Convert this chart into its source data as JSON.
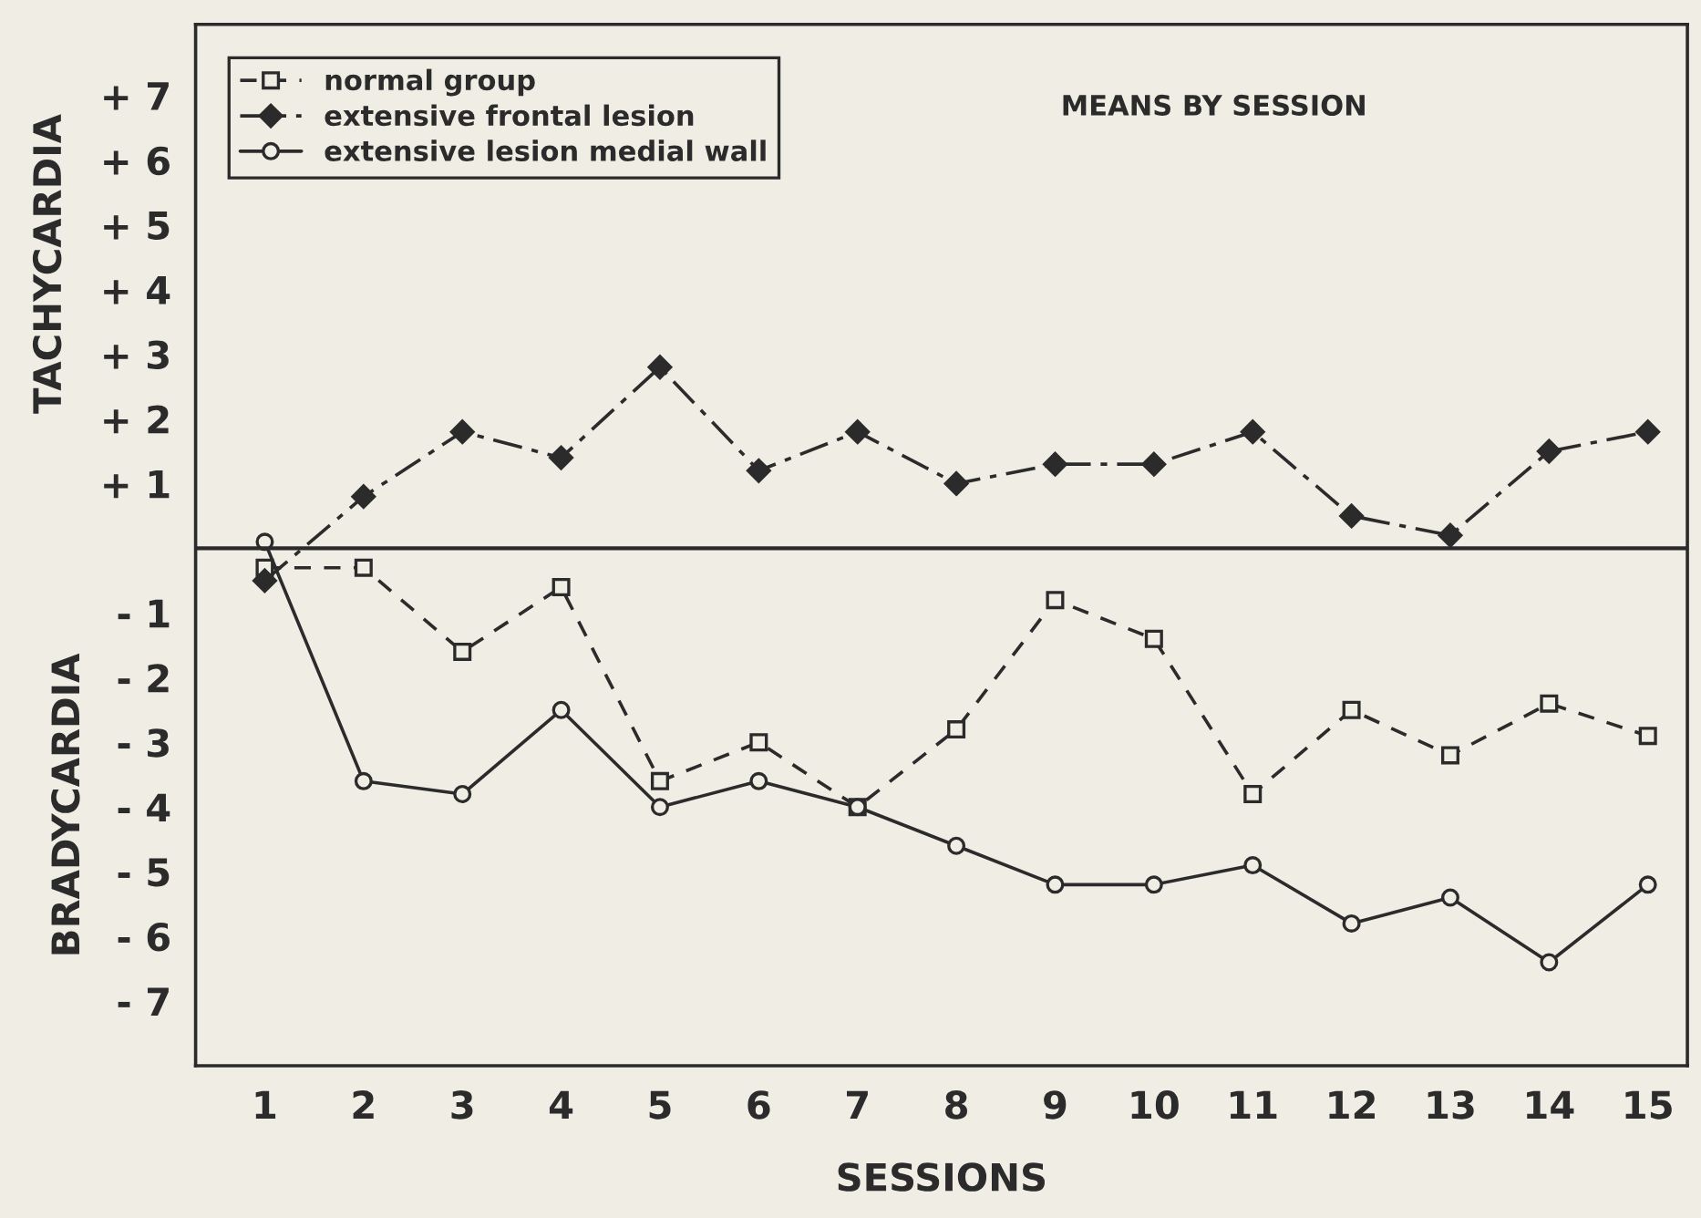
{
  "chart_data": {
    "type": "line",
    "xlabel": "SESSIONS",
    "ylabel": "TACHYCARDIA",
    "annotations": [
      "MEANS BY SESSION",
      "BRADYCARDIA"
    ],
    "x": [
      1,
      2,
      3,
      4,
      5,
      6,
      7,
      8,
      9,
      10,
      11,
      12,
      13,
      14,
      15
    ],
    "xlim": [
      0.3,
      15.4
    ],
    "xticks": [
      1,
      2,
      3,
      4,
      5,
      6,
      7,
      8,
      9,
      10,
      11,
      12,
      13,
      14,
      15
    ],
    "ylim": [
      -8,
      8.1
    ],
    "yticks": [
      {
        "value": 7,
        "label": "+ 7"
      },
      {
        "value": 6,
        "label": "+ 6"
      },
      {
        "value": 5,
        "label": "+ 5"
      },
      {
        "value": 4,
        "label": "+ 4"
      },
      {
        "value": 3,
        "label": "+ 3"
      },
      {
        "value": 2,
        "label": "+ 2"
      },
      {
        "value": 1,
        "label": "+ 1"
      },
      {
        "value": -1,
        "label": "- 1"
      },
      {
        "value": -2,
        "label": "- 2"
      },
      {
        "value": -3,
        "label": "- 3"
      },
      {
        "value": -4,
        "label": "- 4"
      },
      {
        "value": -5,
        "label": "- 5"
      },
      {
        "value": -6,
        "label": "- 6"
      },
      {
        "value": -7,
        "label": "- 7"
      }
    ],
    "ref_lines": [
      {
        "axis": "y",
        "value": 0,
        "color": "#2b2b2b",
        "line_style": "solid"
      }
    ],
    "grid": false,
    "legend": "top left",
    "series": [
      {
        "name": "normal group",
        "color": "#2b2b2b",
        "marker": "square",
        "line_style": "dashed",
        "values": [
          -0.3,
          -0.3,
          -1.6,
          -0.6,
          -3.6,
          -3.0,
          -4.0,
          -2.8,
          -0.8,
          -1.4,
          -3.8,
          -2.5,
          -3.2,
          -2.4,
          -2.9
        ]
      },
      {
        "name": "extensive frontal lesion",
        "color": "#2b2b2b",
        "marker": "diamond",
        "line_style": "dashdot",
        "values": [
          -0.5,
          0.8,
          1.8,
          1.4,
          2.8,
          1.2,
          1.8,
          1.0,
          1.3,
          1.3,
          1.8,
          0.5,
          0.2,
          1.5,
          1.8
        ]
      },
      {
        "name": "extensive lesion medial wall",
        "color": "#2b2b2b",
        "marker": "circle",
        "line_style": "solid",
        "values": [
          0.1,
          -3.6,
          -3.8,
          -2.5,
          -4.0,
          -3.6,
          -4.0,
          -4.6,
          -5.2,
          -5.2,
          -4.9,
          -5.8,
          -5.4,
          -6.4,
          -5.2
        ]
      }
    ]
  }
}
